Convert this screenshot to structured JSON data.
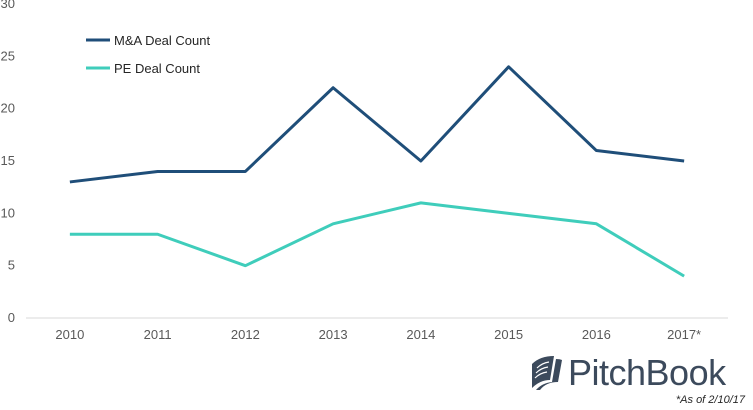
{
  "chart_data": {
    "type": "line",
    "categories": [
      "2010",
      "2011",
      "2012",
      "2013",
      "2014",
      "2015",
      "2016",
      "2017*"
    ],
    "series": [
      {
        "name": "M&A Deal Count",
        "values": [
          13,
          14,
          14,
          22,
          15,
          24,
          16,
          15
        ],
        "color": "#1f4e79"
      },
      {
        "name": "PE Deal Count",
        "values": [
          8,
          8,
          5,
          9,
          11,
          10,
          9,
          4
        ],
        "color": "#3fcdbb"
      }
    ],
    "ylim": [
      0,
      30
    ],
    "yticks": [
      0,
      5,
      10,
      15,
      20,
      25,
      30
    ],
    "grid": false,
    "legend_position": "top-left",
    "title": "",
    "xlabel": "",
    "ylabel": ""
  },
  "branding": {
    "logo_text": "PitchBook",
    "logo_icon": "pitchbook-book-icon",
    "logo_color": "#3c4a5c"
  },
  "footnote": "*As of 2/10/17"
}
